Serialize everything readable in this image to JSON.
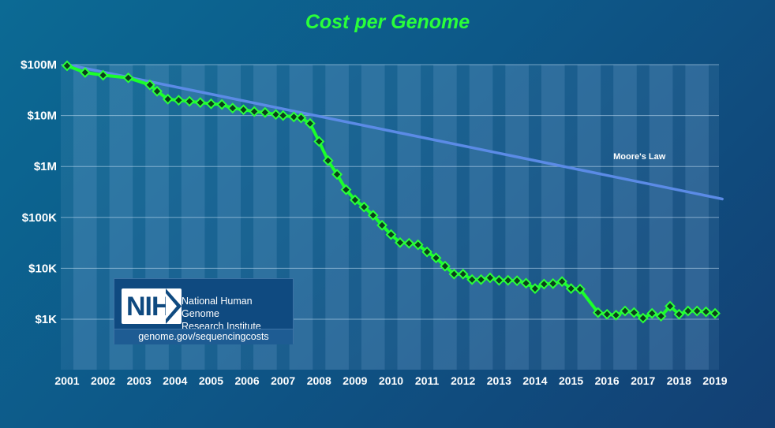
{
  "chart_data": {
    "type": "line",
    "title": "Cost per Genome",
    "xlabel": "",
    "ylabel": "",
    "y_scale": "log",
    "ylim": [
      100,
      100000000
    ],
    "xlim": [
      2001.0,
      2019.2
    ],
    "y_ticks": [
      {
        "value": 100000000,
        "label": "$100M"
      },
      {
        "value": 10000000,
        "label": "$10M"
      },
      {
        "value": 1000000,
        "label": "$1M"
      },
      {
        "value": 100000,
        "label": "$100K"
      },
      {
        "value": 10000,
        "label": "$10K"
      },
      {
        "value": 1000,
        "label": "$1K"
      }
    ],
    "x_ticks": [
      "2001",
      "2002",
      "2003",
      "2004",
      "2005",
      "2006",
      "2007",
      "2008",
      "2009",
      "2010",
      "2011",
      "2012",
      "2013",
      "2014",
      "2015",
      "2016",
      "2017",
      "2018",
      "2019"
    ],
    "grid": true,
    "series": [
      {
        "name": "",
        "color": "#1aff2a",
        "marker": "diamond",
        "x": [
          2001.0,
          2001.5,
          2002.0,
          2002.7,
          2003.3,
          2003.5,
          2003.8,
          2004.1,
          2004.4,
          2004.7,
          2005.0,
          2005.3,
          2005.6,
          2005.9,
          2006.2,
          2006.5,
          2006.8,
          2007.0,
          2007.3,
          2007.5,
          2007.75,
          2008.0,
          2008.25,
          2008.5,
          2008.75,
          2009.0,
          2009.25,
          2009.5,
          2009.75,
          2010.0,
          2010.25,
          2010.5,
          2010.75,
          2011.0,
          2011.25,
          2011.5,
          2011.75,
          2012.0,
          2012.25,
          2012.5,
          2012.75,
          2013.0,
          2013.25,
          2013.5,
          2013.75,
          2014.0,
          2014.25,
          2014.5,
          2014.75,
          2015.0,
          2015.25,
          2015.75,
          2016.0,
          2016.25,
          2016.5,
          2016.75,
          2017.0,
          2017.25,
          2017.5,
          2017.75,
          2018.0,
          2018.25,
          2018.5,
          2018.75,
          2019.0
        ],
        "y": [
          95000000,
          70000000,
          62000000,
          55000000,
          40000000,
          30000000,
          21000000,
          20000000,
          19000000,
          18000000,
          17000000,
          16500000,
          14000000,
          13000000,
          12000000,
          11500000,
          10500000,
          10000000,
          9400000,
          9000000,
          7000000,
          3100000,
          1300000,
          700000,
          350000,
          220000,
          160000,
          110000,
          70000,
          46000,
          32000,
          31000,
          29000,
          21000,
          16000,
          11000,
          7700,
          7700,
          6000,
          6000,
          6500,
          5800,
          5800,
          5700,
          5100,
          4000,
          4900,
          5000,
          5500,
          4000,
          3900,
          1350,
          1250,
          1200,
          1450,
          1350,
          1050,
          1300,
          1150,
          1800,
          1250,
          1450,
          1450,
          1400,
          1300
        ]
      },
      {
        "name": "Moore's Law",
        "color": "#5b8be6",
        "x": [
          2001.0,
          2019.2
        ],
        "y": [
          100000000,
          230000
        ]
      }
    ],
    "annotations": [
      {
        "text": "Moore's Law",
        "x": 2016.9,
        "y": 1200000
      }
    ]
  },
  "nih": {
    "logo_text": "NIH",
    "institute_line1": "National Human Genome",
    "institute_line2": "Research Institute",
    "url": "genome.gov/sequencingcosts"
  }
}
